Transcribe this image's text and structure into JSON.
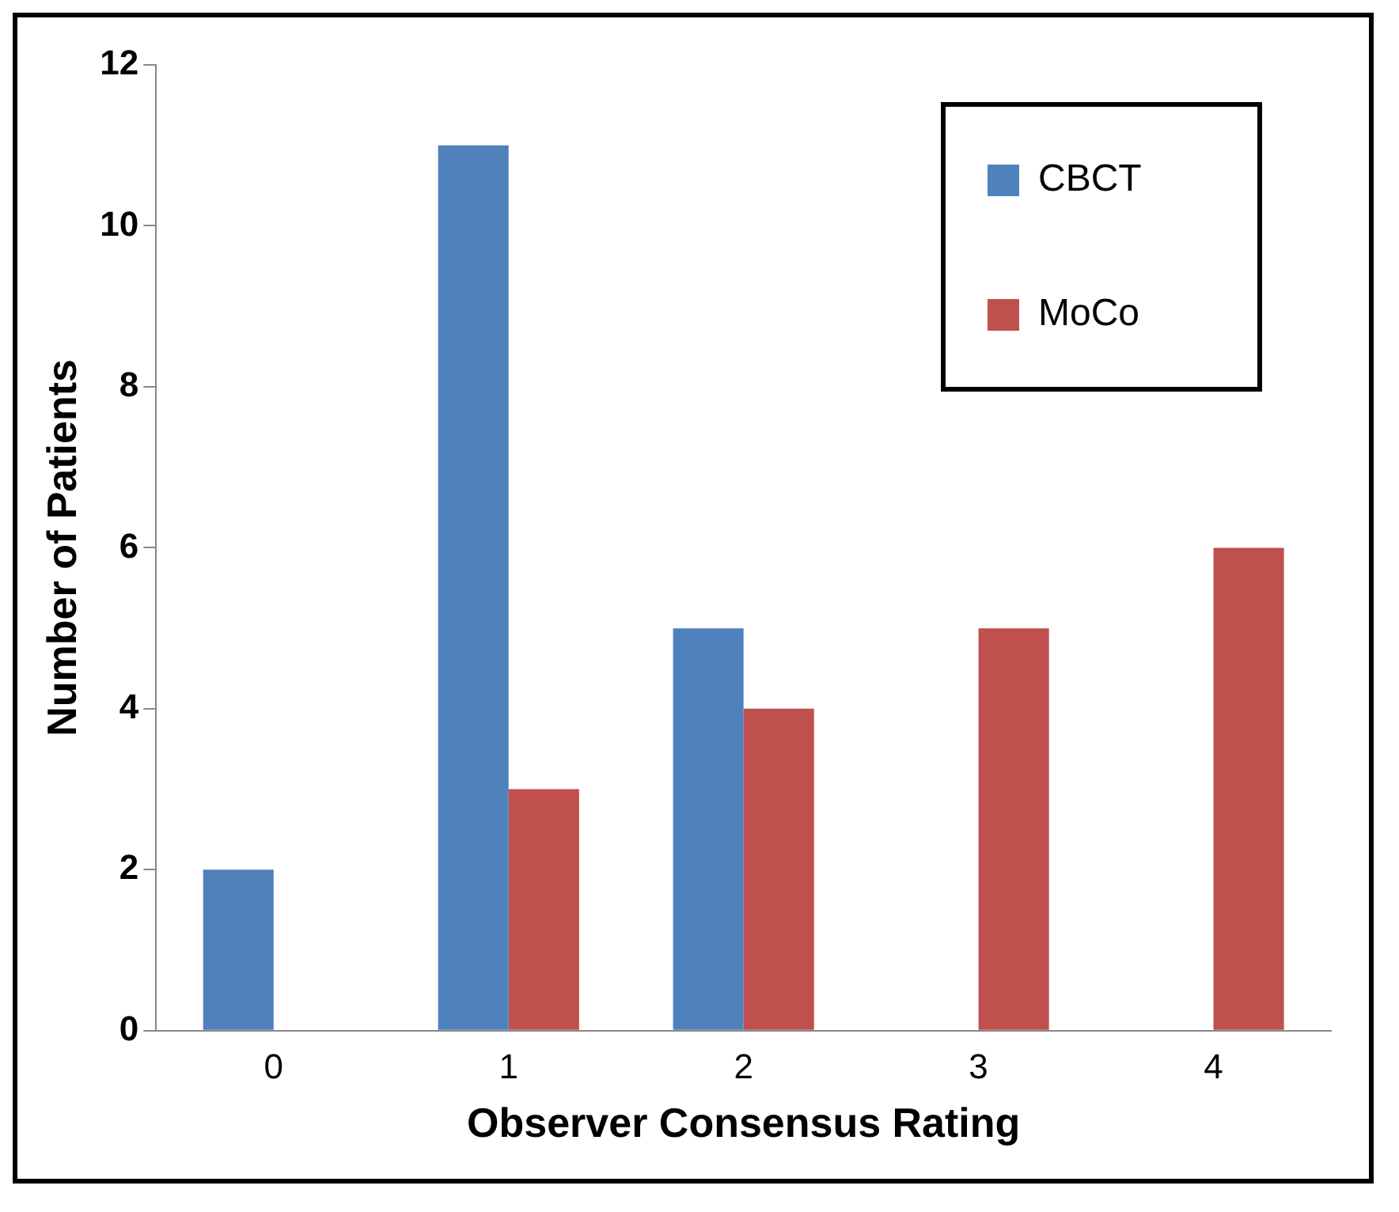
{
  "chart_data": {
    "type": "bar",
    "xlabel": "Observer Consensus Rating",
    "ylabel": "Number of Patients",
    "categories": [
      "0",
      "1",
      "2",
      "3",
      "4"
    ],
    "series": [
      {
        "name": "CBCT",
        "color": "#4f81bd",
        "values": [
          2,
          11,
          5,
          0,
          0
        ]
      },
      {
        "name": "MoCo",
        "color": "#c0504d",
        "values": [
          0,
          3,
          4,
          5,
          6
        ]
      }
    ],
    "ylim": [
      0,
      12
    ],
    "yticks": [
      0,
      2,
      4,
      6,
      8,
      10,
      12
    ],
    "grid": false,
    "legend": "top right"
  }
}
